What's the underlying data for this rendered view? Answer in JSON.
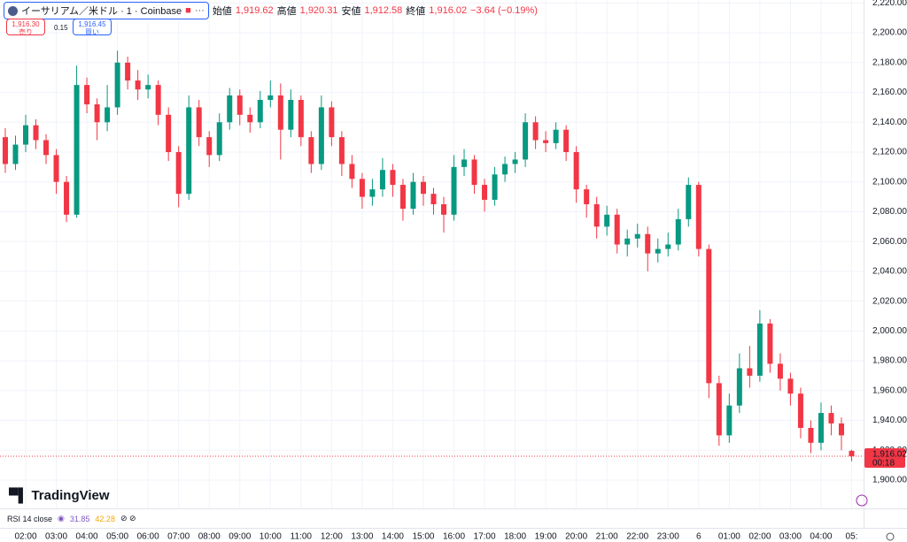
{
  "header": {
    "title": "イーサリアム／米ドル · 1 · Coinbase",
    "open_label": "始値",
    "open": "1,919.62",
    "high_label": "高値",
    "high": "1,920.31",
    "low_label": "安値",
    "low": "1,912.58",
    "close_label": "終値",
    "close": "1,916.02",
    "change": "−3.64 (−0.19%)"
  },
  "trade": {
    "sell_price": "1,916.30",
    "sell_label": "売り",
    "spread": "0.15",
    "buy_price": "1,916.45",
    "buy_label": "買い"
  },
  "brand": "TradingView",
  "indicator": {
    "name": "RSI 14 close",
    "value1": "31.85",
    "value2": "42.28"
  },
  "chart_data": {
    "type": "candlestick",
    "categories": [
      null,
      null,
      "02:00",
      null,
      null,
      "03:00",
      null,
      null,
      "04:00",
      null,
      null,
      "05:00",
      null,
      null,
      "06:00",
      null,
      null,
      "07:00",
      null,
      null,
      "08:00",
      null,
      null,
      "09:00",
      null,
      null,
      "10:00",
      null,
      null,
      "11:00",
      null,
      null,
      "12:00",
      null,
      null,
      "13:00",
      null,
      null,
      "14:00",
      null,
      null,
      "15:00",
      null,
      null,
      "16:00",
      null,
      null,
      "17:00",
      null,
      null,
      "18:00",
      null,
      null,
      "19:00",
      null,
      null,
      "20:00",
      null,
      null,
      "21:00",
      null,
      null,
      "22:00",
      null,
      null,
      "23:00",
      null,
      null,
      "6",
      null,
      null,
      "01:00",
      null,
      null,
      "02:00",
      null,
      null,
      "03:00",
      null,
      null,
      "04:00",
      null,
      null,
      "05:"
    ],
    "open": [
      2130,
      2112,
      2125,
      2138,
      2128,
      2118,
      2100,
      2078,
      2165,
      2152,
      2140,
      2150,
      2180,
      2168,
      2162,
      2165,
      2145,
      2120,
      2092,
      2150,
      2130,
      2118,
      2140,
      2158,
      2145,
      2140,
      2155,
      2158,
      2135,
      2155,
      2130,
      2112,
      2150,
      2130,
      2112,
      2102,
      2090,
      2095,
      2108,
      2098,
      2082,
      2100,
      2092,
      2085,
      2078,
      2110,
      2115,
      2098,
      2088,
      2105,
      2112,
      2115,
      2140,
      2128,
      2126,
      2135,
      2120,
      2095,
      2085,
      2070,
      2078,
      2058,
      2062,
      2065,
      2052,
      2055,
      2058,
      2075,
      2098,
      2055,
      1965,
      1930,
      1950,
      1975,
      1970,
      2005,
      1978,
      1968,
      1958,
      1935,
      1925,
      1945,
      1938,
      1919.62
    ],
    "high": [
      2136,
      2131,
      2145,
      2142,
      2132,
      2122,
      2104,
      2178,
      2170,
      2156,
      2165,
      2188,
      2184,
      2175,
      2172,
      2168,
      2150,
      2124,
      2158,
      2155,
      2134,
      2146,
      2163,
      2162,
      2150,
      2161,
      2168,
      2166,
      2162,
      2158,
      2134,
      2158,
      2154,
      2134,
      2118,
      2106,
      2102,
      2116,
      2112,
      2102,
      2106,
      2104,
      2096,
      2090,
      2118,
      2122,
      2118,
      2102,
      2110,
      2117,
      2120,
      2146,
      2144,
      2134,
      2140,
      2138,
      2124,
      2098,
      2090,
      2084,
      2082,
      2068,
      2072,
      2070,
      2062,
      2066,
      2082,
      2103,
      2100,
      2058,
      1970,
      1958,
      1985,
      1990,
      2014,
      2008,
      1985,
      1972,
      1962,
      1940,
      1952,
      1950,
      1942,
      1920.31
    ],
    "low": [
      2106,
      2108,
      2120,
      2122,
      2112,
      2092,
      2073,
      2076,
      2146,
      2128,
      2134,
      2145,
      2162,
      2155,
      2156,
      2138,
      2114,
      2083,
      2088,
      2124,
      2110,
      2114,
      2135,
      2138,
      2133,
      2136,
      2150,
      2115,
      2130,
      2124,
      2106,
      2108,
      2124,
      2104,
      2096,
      2082,
      2084,
      2090,
      2090,
      2074,
      2078,
      2084,
      2078,
      2066,
      2074,
      2104,
      2092,
      2080,
      2084,
      2100,
      2106,
      2110,
      2122,
      2120,
      2122,
      2114,
      2086,
      2076,
      2062,
      2064,
      2052,
      2050,
      2056,
      2040,
      2046,
      2050,
      2054,
      2070,
      2050,
      1955,
      1923,
      1925,
      1945,
      1962,
      1966,
      1972,
      1960,
      1950,
      1928,
      1918,
      1920,
      1930,
      1920,
      1912.58
    ],
    "close": [
      2112,
      2125,
      2138,
      2128,
      2118,
      2100,
      2078,
      2165,
      2152,
      2140,
      2150,
      2180,
      2168,
      2162,
      2165,
      2145,
      2120,
      2092,
      2150,
      2130,
      2118,
      2140,
      2158,
      2145,
      2140,
      2155,
      2158,
      2135,
      2155,
      2130,
      2112,
      2150,
      2130,
      2112,
      2102,
      2090,
      2095,
      2108,
      2098,
      2082,
      2100,
      2092,
      2085,
      2078,
      2110,
      2115,
      2098,
      2088,
      2105,
      2112,
      2115,
      2140,
      2128,
      2126,
      2135,
      2120,
      2095,
      2085,
      2070,
      2078,
      2058,
      2062,
      2065,
      2052,
      2055,
      2058,
      2075,
      2098,
      2055,
      1965,
      1930,
      1950,
      1975,
      1970,
      2005,
      1978,
      1968,
      1958,
      1935,
      1925,
      1945,
      1938,
      1930,
      1916.02
    ],
    "up_color": "#089981",
    "down_color": "#f23645",
    "ylim": [
      1881,
      2222
    ],
    "yticks": [
      {
        "value": 1900,
        "label": "1,900.00"
      },
      {
        "value": 1920,
        "label": "1,920.00"
      },
      {
        "value": 1940,
        "label": "1,940.00"
      },
      {
        "value": 1960,
        "label": "1,960.00"
      },
      {
        "value": 1980,
        "label": "1,980.00"
      },
      {
        "value": 2000,
        "label": "2,000.00"
      },
      {
        "value": 2020,
        "label": "2,020.00"
      },
      {
        "value": 2040,
        "label": "2,040.00"
      },
      {
        "value": 2060,
        "label": "2,060.00"
      },
      {
        "value": 2080,
        "label": "2,080.00"
      },
      {
        "value": 2100,
        "label": "2,100.00"
      },
      {
        "value": 2120,
        "label": "2,120.00"
      },
      {
        "value": 2140,
        "label": "2,140.00"
      },
      {
        "value": 2160,
        "label": "2,160.00"
      },
      {
        "value": 2180,
        "label": "2,180.00"
      },
      {
        "value": 2200,
        "label": "2,200.00"
      },
      {
        "value": 2220,
        "label": "2,220.00"
      }
    ],
    "grid": true,
    "last_label": "1,916.02",
    "countdown": "00:18"
  }
}
